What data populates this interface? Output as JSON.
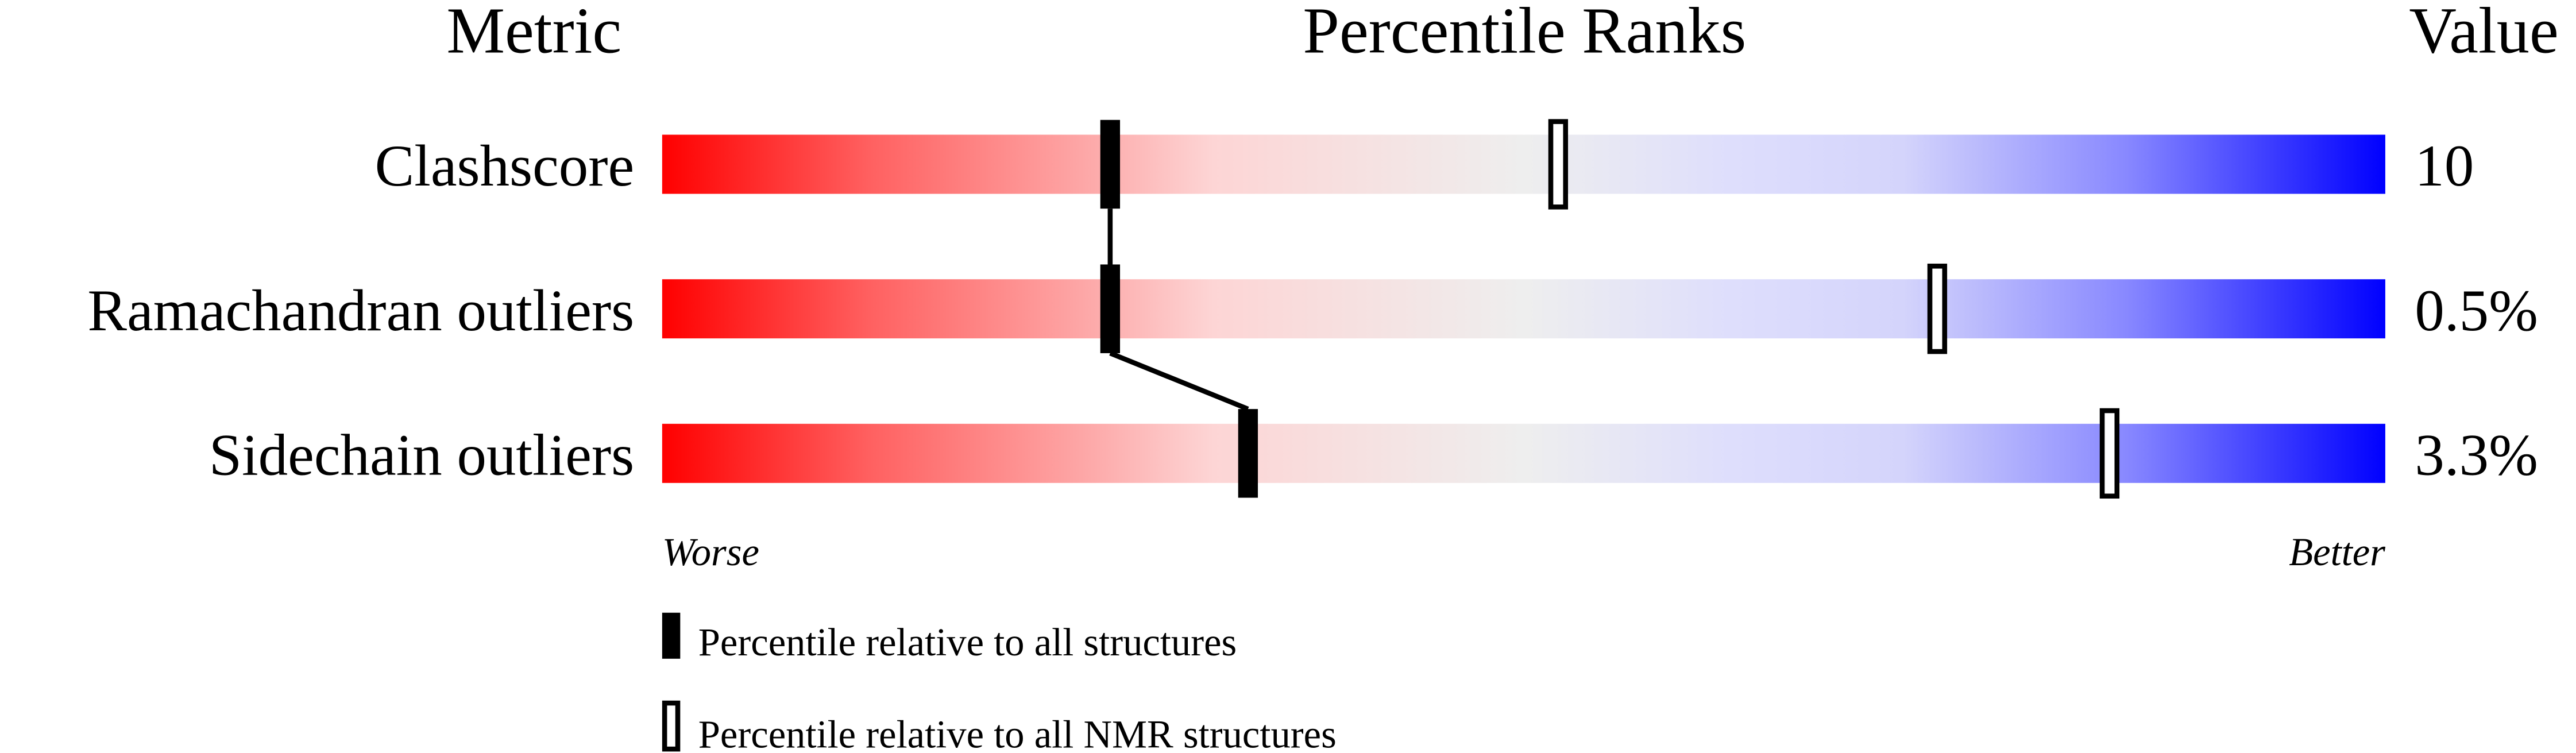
{
  "chart_data": {
    "type": "percentile-ranks",
    "headers": {
      "metric": "Metric",
      "ranks": "Percentile Ranks",
      "value": "Value"
    },
    "xlim": [
      0,
      100
    ],
    "axis_labels": {
      "left": "Worse",
      "right": "Better"
    },
    "colors": {
      "worse": "#ff0000",
      "middle": "#eeeeee",
      "better": "#0000ff"
    },
    "rows": [
      {
        "metric": "Clashscore",
        "value": "10",
        "percentile_all": 26,
        "percentile_nmr": 52
      },
      {
        "metric": "Ramachandran outliers",
        "value": "0.5%",
        "percentile_all": 26,
        "percentile_nmr": 74
      },
      {
        "metric": "Sidechain outliers",
        "value": "3.3%",
        "percentile_all": 34,
        "percentile_nmr": 84
      }
    ],
    "legend": [
      {
        "marker": "filled",
        "label": "Percentile relative to all structures"
      },
      {
        "marker": "open",
        "label": "Percentile relative to all NMR structures"
      }
    ]
  }
}
